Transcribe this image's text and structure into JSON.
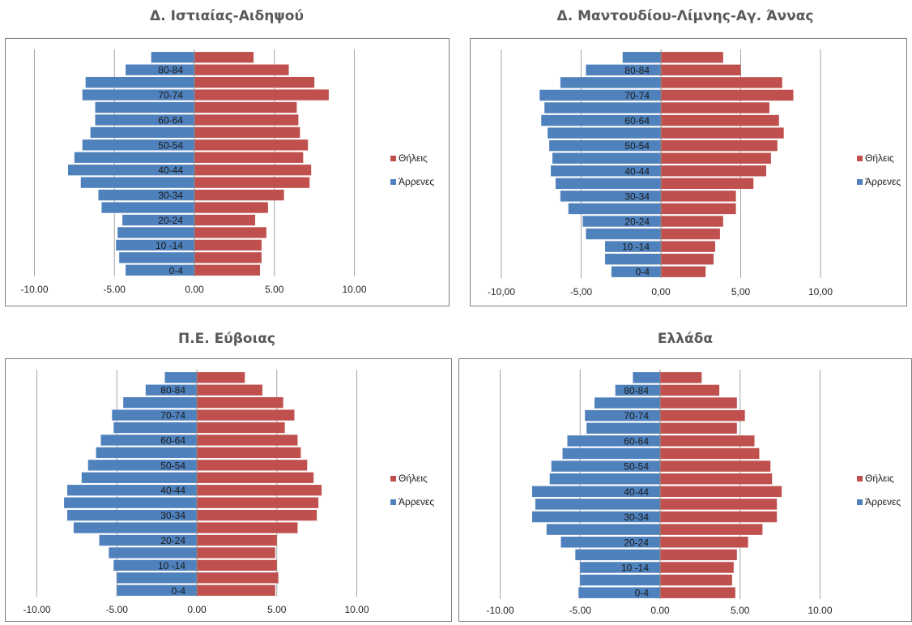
{
  "chart_data": [
    {
      "type": "bar",
      "title": "Δ. Ιστιαίας-Αιδηψού",
      "age_labels": [
        "0-4",
        "",
        "10 -14",
        "",
        "20-24",
        "",
        "30-34",
        "",
        "40-44",
        "",
        "50-54",
        "",
        "60-64",
        "",
        "70-74",
        "",
        "80-84",
        ""
      ],
      "xticks": [
        "-10.00",
        "-5.00",
        "0.00",
        "5.00",
        "10.00"
      ],
      "xlim": [
        -10,
        10
      ],
      "series": [
        {
          "name": "Θήλεις",
          "color": "#c0504d",
          "values": [
            4.1,
            4.2,
            4.2,
            4.5,
            3.8,
            4.6,
            5.6,
            7.2,
            7.3,
            6.8,
            7.1,
            6.6,
            6.5,
            6.4,
            8.4,
            7.5,
            5.9,
            3.7
          ]
        },
        {
          "name": "Άρρενες",
          "color": "#4f81bd",
          "values": [
            -4.3,
            -4.7,
            -4.9,
            -4.8,
            -4.5,
            -5.8,
            -6.0,
            -7.1,
            -7.9,
            -7.5,
            -7.0,
            -6.5,
            -6.2,
            -6.2,
            -7.0,
            -6.8,
            -4.3,
            -2.7
          ]
        }
      ],
      "legend": [
        "Θήλεις",
        "Άρρενες"
      ]
    },
    {
      "type": "bar",
      "title": "Δ. Μαντουδίου-Λίμνης-Αγ. Άννας",
      "age_labels": [
        "0-4",
        "",
        "10 -14",
        "",
        "20-24",
        "",
        "30-34",
        "",
        "40-44",
        "",
        "50-54",
        "",
        "60-64",
        "",
        "70-74",
        "",
        "80-84",
        ""
      ],
      "xticks": [
        "-10,00",
        "-5,00",
        "0,00",
        "5,00",
        "10,00"
      ],
      "xlim": [
        -10,
        10
      ],
      "series": [
        {
          "name": "Θήλεις",
          "color": "#c0504d",
          "values": [
            2.8,
            3.3,
            3.4,
            3.7,
            3.9,
            4.7,
            4.7,
            5.8,
            6.6,
            6.9,
            7.3,
            7.7,
            7.4,
            6.8,
            8.3,
            7.6,
            5.0,
            3.9
          ]
        },
        {
          "name": "Άρρενες",
          "color": "#4f81bd",
          "values": [
            -3.1,
            -3.5,
            -3.5,
            -4.7,
            -4.9,
            -5.8,
            -6.3,
            -6.6,
            -6.9,
            -6.8,
            -7.0,
            -7.1,
            -7.5,
            -7.3,
            -7.6,
            -6.3,
            -4.7,
            -2.4
          ]
        }
      ],
      "legend": [
        "Θήλεις",
        "Άρρενες"
      ]
    },
    {
      "type": "bar",
      "title": "Π.Ε. Εύβοιας",
      "age_labels": [
        "0-4",
        "",
        "10 -14",
        "",
        "20-24",
        "",
        "30-34",
        "",
        "40-44",
        "",
        "50-54",
        "",
        "60-64",
        "",
        "70-74",
        "",
        "80-84",
        ""
      ],
      "xticks": [
        "-10.00",
        "-5.00",
        "0.00",
        "5.00",
        "10.00"
      ],
      "xlim": [
        -10,
        10
      ],
      "series": [
        {
          "name": "Θήλεις",
          "color": "#c0504d",
          "values": [
            4.9,
            5.1,
            5.0,
            4.9,
            5.0,
            6.3,
            7.5,
            7.6,
            7.8,
            7.3,
            6.9,
            6.5,
            6.3,
            5.5,
            6.1,
            5.4,
            4.1,
            3.0
          ]
        },
        {
          "name": "Άρρενες",
          "color": "#4f81bd",
          "values": [
            -5.0,
            -5.0,
            -5.2,
            -5.5,
            -6.1,
            -7.7,
            -8.1,
            -8.3,
            -8.1,
            -7.2,
            -6.8,
            -6.3,
            -6.0,
            -5.2,
            -5.3,
            -4.6,
            -3.2,
            -2.0
          ]
        }
      ],
      "legend": [
        "Θήλεις",
        "Άρρενες"
      ]
    },
    {
      "type": "bar",
      "title": "Ελλάδα",
      "age_labels": [
        "0-4",
        "",
        "10 -14",
        "",
        "20-24",
        "",
        "30-34",
        "",
        "40-44",
        "",
        "50-54",
        "",
        "60-64",
        "",
        "70-74",
        "",
        "80-84",
        ""
      ],
      "xticks": [
        "-10.00",
        "-5.00",
        "0.00",
        "5.00",
        "10.00"
      ],
      "xlim": [
        -10,
        10
      ],
      "series": [
        {
          "name": "Θήλεις",
          "color": "#c0504d",
          "values": [
            4.7,
            4.5,
            4.6,
            4.8,
            5.5,
            6.4,
            7.3,
            7.3,
            7.6,
            7.0,
            6.9,
            6.2,
            5.9,
            4.8,
            5.3,
            4.8,
            3.7,
            2.6
          ]
        },
        {
          "name": "Άρρενες",
          "color": "#4f81bd",
          "values": [
            -5.1,
            -5.0,
            -5.0,
            -5.3,
            -6.2,
            -7.1,
            -8.0,
            -7.8,
            -8.0,
            -6.9,
            -6.8,
            -6.1,
            -5.8,
            -4.6,
            -4.7,
            -4.1,
            -2.8,
            -1.7
          ]
        }
      ],
      "legend": [
        "Θήλεις",
        "Άρρενες"
      ]
    }
  ]
}
